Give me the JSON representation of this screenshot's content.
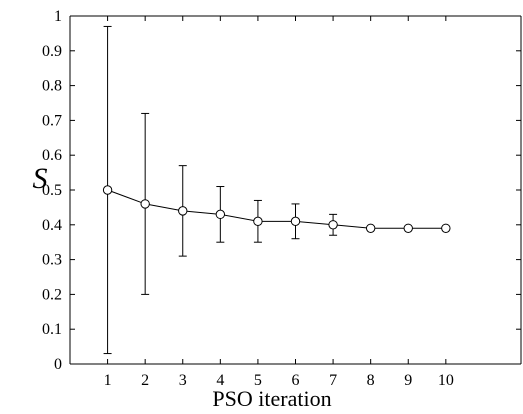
{
  "chart_data": {
    "type": "line",
    "title": "",
    "xlabel": "PSO iteration",
    "ylabel": "S",
    "xlim": [
      0,
      12
    ],
    "ylim": [
      0,
      1
    ],
    "grid": false,
    "x": [
      1,
      2,
      3,
      4,
      5,
      6,
      7,
      8,
      9,
      10
    ],
    "series": [
      {
        "values": [
          0.5,
          0.46,
          0.44,
          0.43,
          0.41,
          0.41,
          0.4,
          0.39,
          0.39,
          0.39
        ],
        "error_low": [
          0.03,
          0.2,
          0.31,
          0.35,
          0.35,
          0.36,
          0.37,
          0.385,
          0.39,
          0.39
        ],
        "error_high": [
          0.97,
          0.72,
          0.57,
          0.51,
          0.47,
          0.46,
          0.43,
          0.395,
          0.39,
          0.39
        ],
        "marker": "circle",
        "color": "#000000"
      }
    ],
    "x_ticks": [
      "1",
      "2",
      "3",
      "4",
      "5",
      "6",
      "7",
      "8",
      "9",
      "10"
    ],
    "y_ticks": [
      "0",
      "0.1",
      "0.2",
      "0.3",
      "0.4",
      "0.5",
      "0.6",
      "0.7",
      "0.8",
      "0.9",
      "1"
    ]
  }
}
